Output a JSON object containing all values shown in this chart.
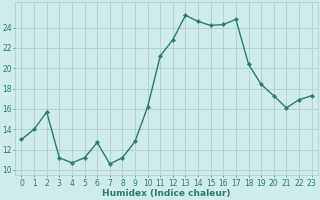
{
  "x": [
    0,
    1,
    2,
    3,
    4,
    5,
    6,
    7,
    8,
    9,
    10,
    11,
    12,
    13,
    14,
    15,
    16,
    17,
    18,
    19,
    20,
    21,
    22,
    23
  ],
  "y": [
    13,
    14,
    15.7,
    11.2,
    10.7,
    11.2,
    12.7,
    10.6,
    11.2,
    12.8,
    16.2,
    21.2,
    22.8,
    25.2,
    24.6,
    24.2,
    24.3,
    24.8,
    20.4,
    18.4,
    17.3,
    16.1,
    16.9,
    17.3
  ],
  "line_color": "#2d7d6e",
  "marker": "D",
  "marker_size": 2.2,
  "linewidth": 1.0,
  "bg_color": "#cdecea",
  "grid_color": "#b0cfcc",
  "label_color": "#2d7d6e",
  "xlabel": "Humidex (Indice chaleur)",
  "xlim": [
    -0.5,
    23.5
  ],
  "ylim": [
    9.5,
    26.5
  ],
  "yticks": [
    10,
    12,
    14,
    16,
    18,
    20,
    22,
    24
  ],
  "xticks": [
    0,
    1,
    2,
    3,
    4,
    5,
    6,
    7,
    8,
    9,
    10,
    11,
    12,
    13,
    14,
    15,
    16,
    17,
    18,
    19,
    20,
    21,
    22,
    23
  ],
  "xlabel_fontsize": 6.5,
  "tick_fontsize": 5.5
}
